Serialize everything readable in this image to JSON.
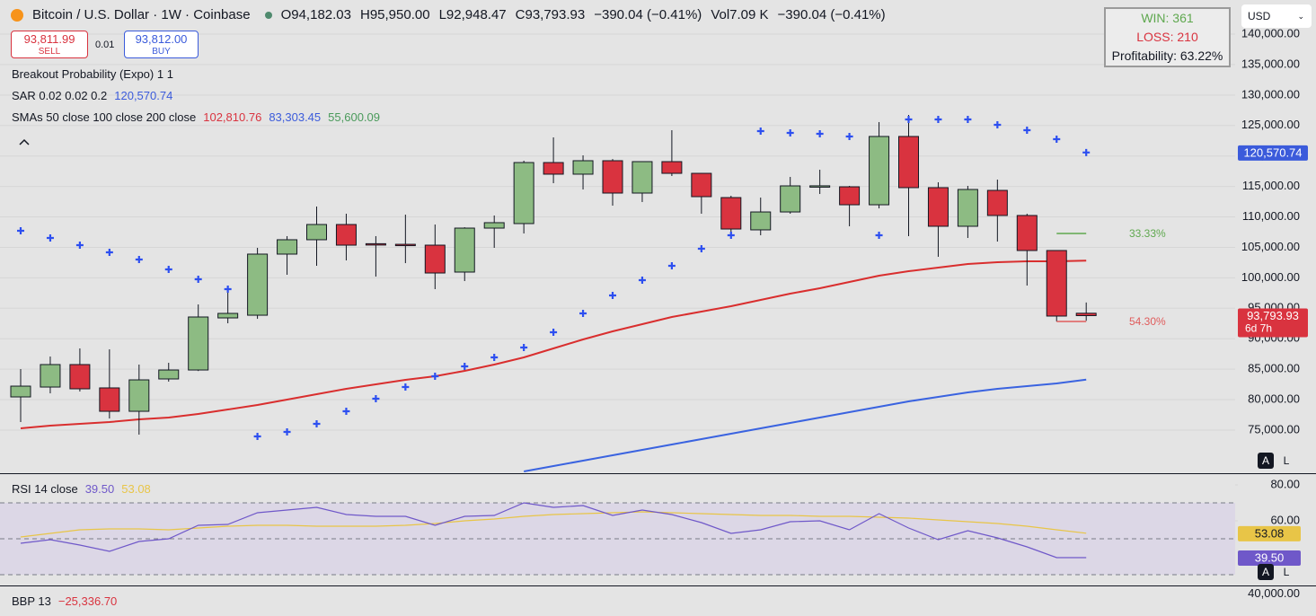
{
  "header": {
    "symbol": "Bitcoin / U.S. Dollar · 1W · Coinbase",
    "ohlc": [
      {
        "key": "O",
        "value": "94,182.03"
      },
      {
        "key": "H",
        "value": "95,950.00"
      },
      {
        "key": "L",
        "value": "92,948.47"
      },
      {
        "key": "C",
        "value": "93,793.93"
      }
    ],
    "change": "−390.04 (−0.41%)",
    "vol_key": "Vol",
    "vol": "7.09 K",
    "change2": "−390.04 (−0.41%)"
  },
  "trade": {
    "sell_price": "93,811.99",
    "sell": "SELL",
    "spread": "0.01",
    "buy_price": "93,812.00",
    "buy": "BUY"
  },
  "indicators": [
    {
      "name": "Breakout Probability (Expo) 1 1"
    },
    {
      "name": "SAR 0.02 0.02 0.2",
      "values": [
        {
          "text": "120,570.74",
          "color": "#3b5bdb"
        }
      ]
    },
    {
      "name": "SMAs 50 close 100 close 200 close",
      "values": [
        {
          "text": "102,810.76",
          "color": "#d9333f"
        },
        {
          "text": "83,303.45",
          "color": "#3b5bdb"
        },
        {
          "text": "55,600.09",
          "color": "#4a9a5b"
        }
      ]
    }
  ],
  "stats": {
    "win": "WIN: 361",
    "loss": "LOSS: 210",
    "profitability": "Profitability: 63.22%"
  },
  "currency": "USD",
  "scale_buttons": [
    "A",
    "L"
  ],
  "rsi_legend": {
    "name": "RSI 14 close",
    "values": [
      {
        "text": "39.50",
        "color": "#6f58c9"
      },
      {
        "text": "53.08",
        "color": "#e8c547"
      }
    ]
  },
  "bbp_legend": {
    "name": "BBP 13",
    "value": "−25,336.70",
    "axis": "40,000.00"
  },
  "chart_data": [
    {
      "type": "candlestick",
      "categories": [
        null,
        null,
        null,
        null,
        null,
        null,
        null,
        null,
        null,
        null,
        null,
        null,
        null,
        null,
        null,
        null,
        null,
        null,
        null,
        null,
        null,
        null,
        null,
        null,
        null,
        null,
        null,
        null,
        null,
        null,
        null,
        null,
        null,
        null,
        null,
        null,
        null
      ],
      "open": [
        80450,
        82070,
        85760,
        81930,
        78090,
        83400,
        84870,
        93420,
        93860,
        103890,
        106250,
        108750,
        105600,
        105500,
        105360,
        100940,
        108160,
        108900,
        118920,
        117010,
        119220,
        113910,
        119070,
        117150,
        113170,
        107870,
        110810,
        115000,
        114940,
        111990,
        123200,
        114800,
        108460,
        114350,
        110230,
        104480,
        94182.03
      ],
      "high": [
        85020,
        87080,
        88410,
        88260,
        85760,
        86050,
        95630,
        98730,
        104920,
        106840,
        111700,
        110520,
        106840,
        110370,
        108750,
        108300,
        110230,
        119220,
        123050,
        120100,
        119500,
        119100,
        124230,
        117200,
        113470,
        113170,
        116560,
        117740,
        115090,
        125560,
        126730,
        115680,
        115090,
        116120,
        110520,
        104500,
        95950
      ],
      "low": [
        76320,
        81040,
        81340,
        76910,
        74260,
        82960,
        84700,
        92540,
        93270,
        100500,
        101970,
        102860,
        100200,
        102410,
        98140,
        99470,
        104920,
        107280,
        115530,
        114500,
        111850,
        112440,
        116710,
        110520,
        106980,
        106980,
        110520,
        113760,
        108460,
        111400,
        106840,
        103450,
        106540,
        105950,
        98730,
        92830,
        92948.47
      ],
      "close": [
        82220,
        85760,
        81780,
        78090,
        83250,
        84870,
        93570,
        94160,
        103890,
        106250,
        108750,
        105360,
        105500,
        105450,
        100790,
        108160,
        109050,
        118920,
        117010,
        119220,
        113910,
        119070,
        117150,
        113320,
        108010,
        110810,
        115090,
        115100,
        111990,
        123200,
        114800,
        108460,
        114500,
        110230,
        104480,
        93720,
        93793.93
      ],
      "up_color": "#8dbb83",
      "down_color": "#d9333f",
      "overlays": [
        {
          "color": "#d92e2e",
          "values": [
            75290,
            75730,
            76030,
            76320,
            76770,
            77060,
            77650,
            78390,
            79130,
            80010,
            80890,
            81780,
            82520,
            83250,
            83840,
            84730,
            85760,
            86940,
            88410,
            89880,
            91210,
            92390,
            93570,
            94450,
            95340,
            96370,
            97400,
            98290,
            99320,
            100350,
            101090,
            101680,
            102270,
            102560,
            102710,
            102710,
            102810.76
          ]
        },
        {
          "color": "#3a63e0",
          "values": [
            null,
            null,
            null,
            null,
            null,
            null,
            null,
            null,
            null,
            null,
            null,
            null,
            null,
            null,
            null,
            null,
            null,
            68220,
            69100,
            69990,
            70870,
            71760,
            72640,
            73530,
            74410,
            75290,
            76180,
            77060,
            77950,
            78830,
            79720,
            80450,
            81190,
            81780,
            82220,
            82660,
            83303.45
          ]
        }
      ],
      "sar": {
        "color": "#2d4ff0",
        "values": [
          107720,
          106540,
          105360,
          104180,
          103000,
          101380,
          99760,
          98140,
          73970,
          74700,
          76030,
          78090,
          80160,
          82070,
          83840,
          85460,
          86940,
          88560,
          91060,
          94160,
          97110,
          99610,
          101970,
          104770,
          106980,
          124080,
          123790,
          123640,
          123200,
          106980,
          126000,
          126000,
          126000,
          125110,
          124230,
          122750,
          120570.74
        ]
      },
      "ylim": [
        67925,
        145600
      ],
      "yticks": [
        {
          "value": 75000,
          "label": "75,000.00"
        },
        {
          "value": 80000,
          "label": "80,000.00"
        },
        {
          "value": 85000,
          "label": "85,000.00"
        },
        {
          "value": 90000,
          "label": "90,000.00"
        },
        {
          "value": 95000,
          "label": "95,000.00"
        },
        {
          "value": 100000,
          "label": "100,000.00"
        },
        {
          "value": 105000,
          "label": "105,000.00"
        },
        {
          "value": 110000,
          "label": "110,000.00"
        },
        {
          "value": 115000,
          "label": "115,000.00"
        },
        {
          "value": 120000,
          "label": "120,000.00"
        },
        {
          "value": 125000,
          "label": "125,000.00"
        },
        {
          "value": 130000,
          "label": "130,000.00"
        },
        {
          "value": 135000,
          "label": "135,000.00"
        },
        {
          "value": 140000,
          "label": "140,000.00"
        }
      ],
      "grid": true,
      "price_tags": [
        {
          "value": 120570.74,
          "label": "120,570.74",
          "color": "#3b5bdb"
        },
        {
          "value": 93793.93,
          "label": "93,793.93",
          "sub": "6d 7h",
          "color": "#d9333f"
        }
      ],
      "levels": [
        {
          "value": 107280,
          "label": "33.33%",
          "color": "#5fa84f"
        },
        {
          "value": 92830,
          "label": "54.30%",
          "color": "#e05c5c"
        }
      ]
    },
    {
      "type": "line",
      "series": [
        {
          "color": "#6f58c9",
          "values": [
            47.5,
            49.5,
            46.5,
            43,
            48.5,
            50,
            57.5,
            58,
            64.5,
            66,
            67.5,
            63.5,
            62.5,
            62.5,
            57.5,
            62.5,
            63,
            70,
            67.5,
            68.5,
            63,
            66,
            63.5,
            59,
            53,
            55,
            59.5,
            60,
            55,
            64,
            56,
            49.5,
            54.5,
            50.5,
            45.5,
            39.5,
            39.5
          ],
          "tag": {
            "value": 39.5,
            "label": "39.50"
          }
        },
        {
          "color": "#e8c547",
          "values": [
            51,
            53,
            55,
            55.5,
            55.5,
            55,
            56,
            57,
            57.5,
            57.5,
            57,
            57,
            57,
            57.5,
            58.5,
            60,
            61,
            62.5,
            63.5,
            64,
            64.5,
            65,
            64.5,
            64,
            63.5,
            63,
            63,
            62.5,
            62.5,
            62,
            61.5,
            60.5,
            59.5,
            58.5,
            57,
            55,
            53.08
          ],
          "tag": {
            "value": 53.08,
            "label": "53.08"
          }
        }
      ],
      "ylim": [
        24,
        86
      ],
      "yticks": [
        {
          "value": 80,
          "label": "80.00"
        },
        {
          "value": 60,
          "label": "60.00"
        }
      ],
      "bands": [
        70,
        50,
        30
      ],
      "band_color": "#dcd7e6"
    }
  ]
}
